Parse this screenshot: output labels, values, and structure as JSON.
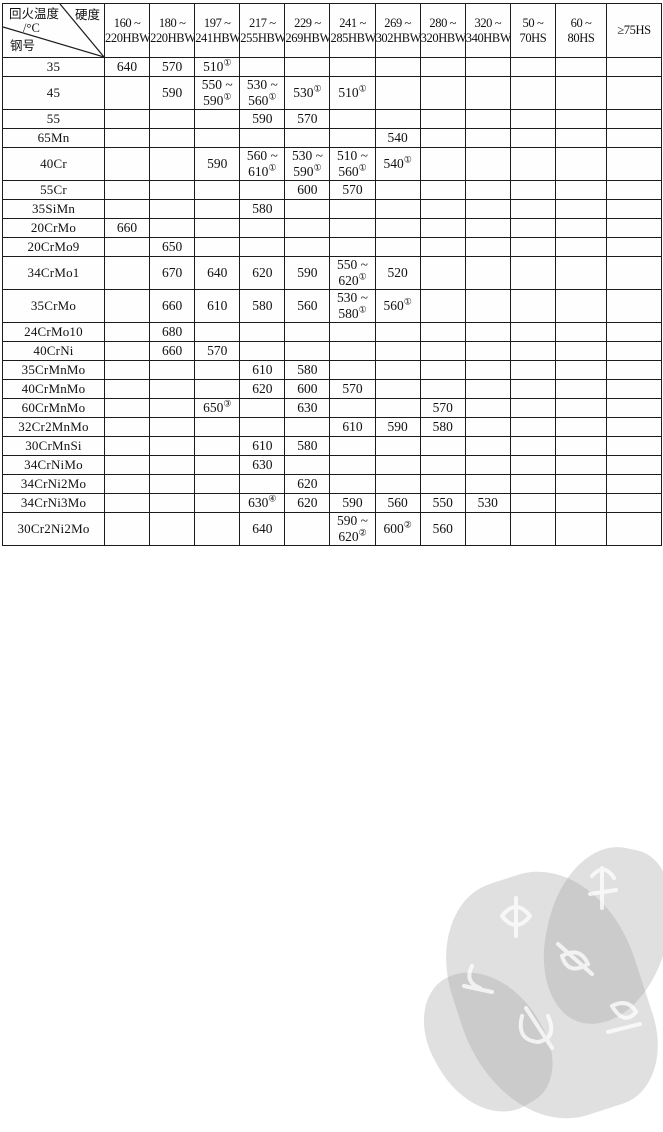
{
  "header": {
    "corner": {
      "temp_line1": "回火温度",
      "temp_line2": "/°C",
      "hardness": "硬度",
      "grade": "钢号"
    },
    "columns": [
      {
        "l1": "160 ~",
        "l2": "220HBW"
      },
      {
        "l1": "180 ~",
        "l2": "220HBW"
      },
      {
        "l1": "197 ~",
        "l2": "241HBW"
      },
      {
        "l1": "217 ~",
        "l2": "255HBW"
      },
      {
        "l1": "229 ~",
        "l2": "269HBW"
      },
      {
        "l1": "241 ~",
        "l2": "285HBW"
      },
      {
        "l1": "269 ~",
        "l2": "302HBW"
      },
      {
        "l1": "280 ~",
        "l2": "320HBW"
      },
      {
        "l1": "320 ~",
        "l2": "340HBW"
      },
      {
        "l1": "50 ~",
        "l2": "70HS"
      },
      {
        "l1": "60 ~",
        "l2": "80HS"
      },
      {
        "l1": "≥75HS",
        "l2": ""
      }
    ]
  },
  "table": {
    "rows": [
      {
        "grade": "35",
        "values": [
          "640",
          "570",
          "510①",
          "",
          "",
          "",
          "",
          "",
          "",
          "",
          "",
          ""
        ]
      },
      {
        "grade": "45",
        "values": [
          "",
          "590",
          "550 ~\n590①",
          "530 ~\n560①",
          "530①",
          "510①",
          "",
          "",
          "",
          "",
          "",
          ""
        ]
      },
      {
        "grade": "55",
        "values": [
          "",
          "",
          "",
          "590",
          "570",
          "",
          "",
          "",
          "",
          "",
          "",
          ""
        ]
      },
      {
        "grade": "65Mn",
        "values": [
          "",
          "",
          "",
          "",
          "",
          "",
          "540",
          "",
          "",
          "",
          "",
          ""
        ]
      },
      {
        "grade": "40Cr",
        "values": [
          "",
          "",
          "590",
          "560 ~\n610①",
          "530 ~\n590①",
          "510 ~\n560①",
          "540①",
          "",
          "",
          "",
          "",
          ""
        ]
      },
      {
        "grade": "55Cr",
        "values": [
          "",
          "",
          "",
          "",
          "600",
          "570",
          "",
          "",
          "",
          "",
          "",
          ""
        ]
      },
      {
        "grade": "35SiMn",
        "values": [
          "",
          "",
          "",
          "580",
          "",
          "",
          "",
          "",
          "",
          "",
          "",
          ""
        ]
      },
      {
        "grade": "20CrMo",
        "values": [
          "660",
          "",
          "",
          "",
          "",
          "",
          "",
          "",
          "",
          "",
          "",
          ""
        ]
      },
      {
        "grade": "20CrMo9",
        "values": [
          "",
          "650",
          "",
          "",
          "",
          "",
          "",
          "",
          "",
          "",
          "",
          ""
        ]
      },
      {
        "grade": "34CrMo1",
        "values": [
          "",
          "670",
          "640",
          "620",
          "590",
          "550 ~\n620①",
          "520",
          "",
          "",
          "",
          "",
          ""
        ]
      },
      {
        "grade": "35CrMo",
        "values": [
          "",
          "660",
          "610",
          "580",
          "560",
          "530 ~\n580①",
          "560①",
          "",
          "",
          "",
          "",
          ""
        ]
      },
      {
        "grade": "24CrMo10",
        "values": [
          "",
          "680",
          "",
          "",
          "",
          "",
          "",
          "",
          "",
          "",
          "",
          ""
        ]
      },
      {
        "grade": "40CrNi",
        "values": [
          "",
          "660",
          "570",
          "",
          "",
          "",
          "",
          "",
          "",
          "",
          "",
          ""
        ]
      },
      {
        "grade": "35CrMnMo",
        "values": [
          "",
          "",
          "",
          "610",
          "580",
          "",
          "",
          "",
          "",
          "",
          "",
          ""
        ]
      },
      {
        "grade": "40CrMnMo",
        "values": [
          "",
          "",
          "",
          "620",
          "600",
          "570",
          "",
          "",
          "",
          "",
          "",
          ""
        ]
      },
      {
        "grade": "60CrMnMo",
        "values": [
          "",
          "",
          "650③",
          "",
          "630",
          "",
          "",
          "570",
          "",
          "",
          "",
          ""
        ]
      },
      {
        "grade": "32Cr2MnMo",
        "values": [
          "",
          "",
          "",
          "",
          "",
          "610",
          "590",
          "580",
          "",
          "",
          "",
          ""
        ]
      },
      {
        "grade": "30CrMnSi",
        "values": [
          "",
          "",
          "",
          "610",
          "580",
          "",
          "",
          "",
          "",
          "",
          "",
          ""
        ]
      },
      {
        "grade": "34CrNiMo",
        "values": [
          "",
          "",
          "",
          "630",
          "",
          "",
          "",
          "",
          "",
          "",
          "",
          ""
        ]
      },
      {
        "grade": "34CrNi2Mo",
        "values": [
          "",
          "",
          "",
          "",
          "620",
          "",
          "",
          "",
          "",
          "",
          "",
          ""
        ]
      },
      {
        "grade": "34CrNi3Mo",
        "values": [
          "",
          "",
          "",
          "630④",
          "620",
          "590",
          "560",
          "550",
          "530",
          "",
          "",
          ""
        ]
      },
      {
        "grade": "30Cr2Ni2Mo",
        "values": [
          "",
          "",
          "",
          "640",
          "",
          "590 ~\n620②",
          "600②",
          "560",
          "",
          "",
          "",
          ""
        ]
      }
    ]
  }
}
